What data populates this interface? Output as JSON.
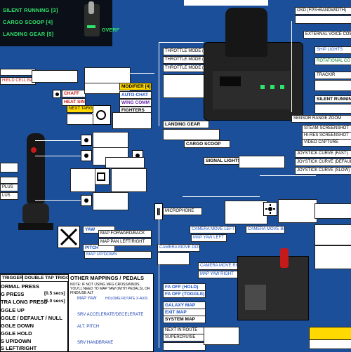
{
  "top_left": {
    "items": [
      "SILENT RUNNING [3]",
      "CARGO SCOOP [4]",
      "LANDING GEAR [5]"
    ],
    "overlay": "OVERF"
  },
  "left_labels": {
    "chaff": "CHAFF",
    "heat_sink": "HEAT SINK",
    "modifier": "MODIFIER [4]",
    "auto_chat": "AUTO-CHAT",
    "wing_comm": "WING COMM",
    "fighters": "FIGHTERS",
    "next_target": "NEXT TARGET",
    "shield_cell": "HIELD CELL BANK",
    "yaw": "YAW",
    "pitch": "PITCH",
    "roll": "ROLL",
    "map_forward_back": "MAP FORWARD/BACK",
    "map_pan_left_right": "MAP PAN LEFT/RIGHT",
    "map_up_down": "MAP UP/DOWN",
    "lus": "LUS",
    "plus": "PLUS"
  },
  "right_top_labels": {
    "throttle_fwd": "THROTTLE MODE (FWD ONLY)",
    "throttle_full": "THROTTLE MODE (FULL RANGE)",
    "throttle_precision": "THROTTLE MODE (PRECISION)",
    "landing_gear": "LANDING GEAR",
    "cargo_scoop": "CARGO SCOOP",
    "signal_lights": "SIGNAL LIGHTS",
    "osd": "OSD (FPS+BANDWIDTH)",
    "external_voice": "EXTERNAL VOICE COMM",
    "ship_lights": "SHIP LIGHTS",
    "rotational_correction": "ROTATIONAL CO",
    "tracking": "TRACKIR",
    "silent_running": "SILENT RUNNING",
    "sensor_range_zoom": "SENSOR RANGE ZOOM",
    "steam_screenshot": "STEAM SCREENSHOT",
    "hi_res_screenshot": "HI-RES SCREENSHOT",
    "video_capture": "VIDEO CAPTURE",
    "joystick_curve_fast": "JOYSTICK CURVE (FAST)",
    "joystick_curve_default": "JOYSTICK CURVE (DEFAULT)",
    "joystick_curve_slow": "JOYSTICK CURVE (SLOW)",
    "microphone": "MICROPHONE",
    "camera_move_left": "CAMERA MOVE LEFT",
    "camera_move_down": "CAMERA MOVE DOWN",
    "camera_move_right": "CAMERA MOVE RIGHT",
    "camera_move_back": "CAMERA MOVE BACK",
    "map_yaw_right": "MAP YAW RIGHT",
    "map_yaw_left": "MAP YAW LEFT",
    "fa_off_hold": "FA OFF (HOLD)",
    "fa_off_toggle": "FA OFF (TOGGLE)",
    "galaxy_map": "GALAXY MAP",
    "exit_map": "EXIT MAP",
    "system_map": "SYSTEM MAP",
    "next_in_route": "NEXT IN ROUTE",
    "supercruise": "SUPERCRUISE"
  },
  "bottom": {
    "trigger": "TRIGGER",
    "double_tap": "DOUBLE TAP TRIGGER",
    "other_title": "OTHER MAPPINGS / PEDALS",
    "note": "NOTE: IF NOT USING MFG CROSSWINDS, YOU'LL NEED TO MAP YAW (WITH PEDALS), OR FIND/USE ALT",
    "map_yaw": "MAP YAW",
    "holo_rotate": "HOLOME ROTATE X-AXIS",
    "srv_accel": "SRV ACCELERATE/DECELERATE",
    "alt_pitch": "ALT. PITCH",
    "srv_handbrake": "SRV HANDBRAKE",
    "rows": [
      "ORMAL PRESS",
      "G PRESS",
      "TRA LONG PRESS",
      "GGLE UP",
      "GGLE / DEFAULT / NULL",
      "GGLE DOWN",
      "GGLE HOLD",
      "S UP/DOWN",
      "S LEFT/RIGHT"
    ],
    "times": [
      "[0.5 secs]",
      "[1.0 secs]"
    ]
  },
  "colors": {
    "background": "#1b4f9a",
    "label_yellow": "#ffd900",
    "green_led": "#2fe36a",
    "text_blue": "#1a52c8",
    "text_red": "#d01818"
  }
}
